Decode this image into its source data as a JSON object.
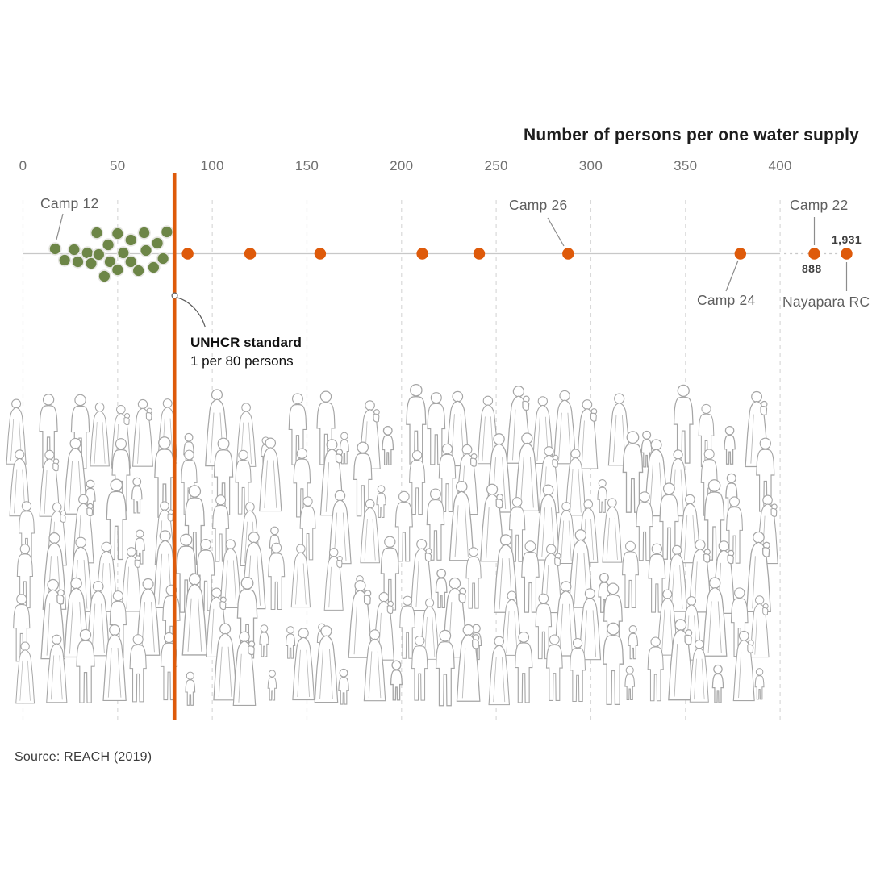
{
  "title": "Number of persons per one water supply",
  "source": "Source: REACH (2019)",
  "standard_annotation": {
    "title": "UNHCR standard",
    "subtitle": "1 per 80 persons"
  },
  "annotations": {
    "camp12": "Camp 12",
    "camp26": "Camp 26",
    "camp24": "Camp 24",
    "camp22": "Camp 22",
    "camp22_value": "888",
    "nayapara": "Nayapara RC",
    "nayapara_value": "1,931"
  },
  "colors": {
    "orange": "#DE5A0A",
    "green": "#6D8647",
    "green_stroke": "#E6E6E2",
    "axis": "#C8C8C8",
    "grid": "#D9D9D9",
    "connector": "#8C8C8C"
  },
  "chart_data": {
    "type": "scatter",
    "title": "Number of persons per one water supply",
    "xlabel": "Number of persons per one water supply",
    "x_ticks": [
      0,
      50,
      100,
      150,
      200,
      250,
      300,
      350,
      400
    ],
    "grid": "dashed-vertical",
    "unhcr_standard": {
      "value": 80,
      "label": "UNHCR standard",
      "description": "1 per 80 persons"
    },
    "series": [
      {
        "name": "camps-below-unhcr-standard",
        "color": "#6D8647",
        "points": [
          {
            "v": 17,
            "dy": -6,
            "label": "Camp 12"
          },
          {
            "v": 22,
            "dy": 8
          },
          {
            "v": 27,
            "dy": -5
          },
          {
            "v": 29,
            "dy": 10
          },
          {
            "v": 34,
            "dy": -1
          },
          {
            "v": 36,
            "dy": 12
          },
          {
            "v": 39,
            "dy": -26
          },
          {
            "v": 40,
            "dy": 1
          },
          {
            "v": 43,
            "dy": 28
          },
          {
            "v": 45,
            "dy": -11
          },
          {
            "v": 46,
            "dy": 10
          },
          {
            "v": 50,
            "dy": -25
          },
          {
            "v": 50,
            "dy": 20
          },
          {
            "v": 53,
            "dy": -1
          },
          {
            "v": 57,
            "dy": -17
          },
          {
            "v": 57,
            "dy": 10
          },
          {
            "v": 61,
            "dy": 21
          },
          {
            "v": 64,
            "dy": -26
          },
          {
            "v": 65,
            "dy": -4
          },
          {
            "v": 69,
            "dy": 17
          },
          {
            "v": 71,
            "dy": -13
          },
          {
            "v": 74,
            "dy": 6
          },
          {
            "v": 76,
            "dy": -27
          }
        ]
      },
      {
        "name": "camps-above-unhcr-standard",
        "color": "#DE5A0A",
        "points": [
          {
            "v": 87
          },
          {
            "v": 120
          },
          {
            "v": 157
          },
          {
            "v": 211
          },
          {
            "v": 241
          },
          {
            "v": 288,
            "label": "Camp 26"
          },
          {
            "v": 379,
            "label": "Camp 24"
          }
        ]
      },
      {
        "name": "camps-above-unhcr-standard-offscale",
        "color": "#DE5A0A",
        "points": [
          {
            "v": 888,
            "label": "Camp 22"
          },
          {
            "v": 1931,
            "label": "Nayapara RC"
          }
        ]
      }
    ]
  }
}
